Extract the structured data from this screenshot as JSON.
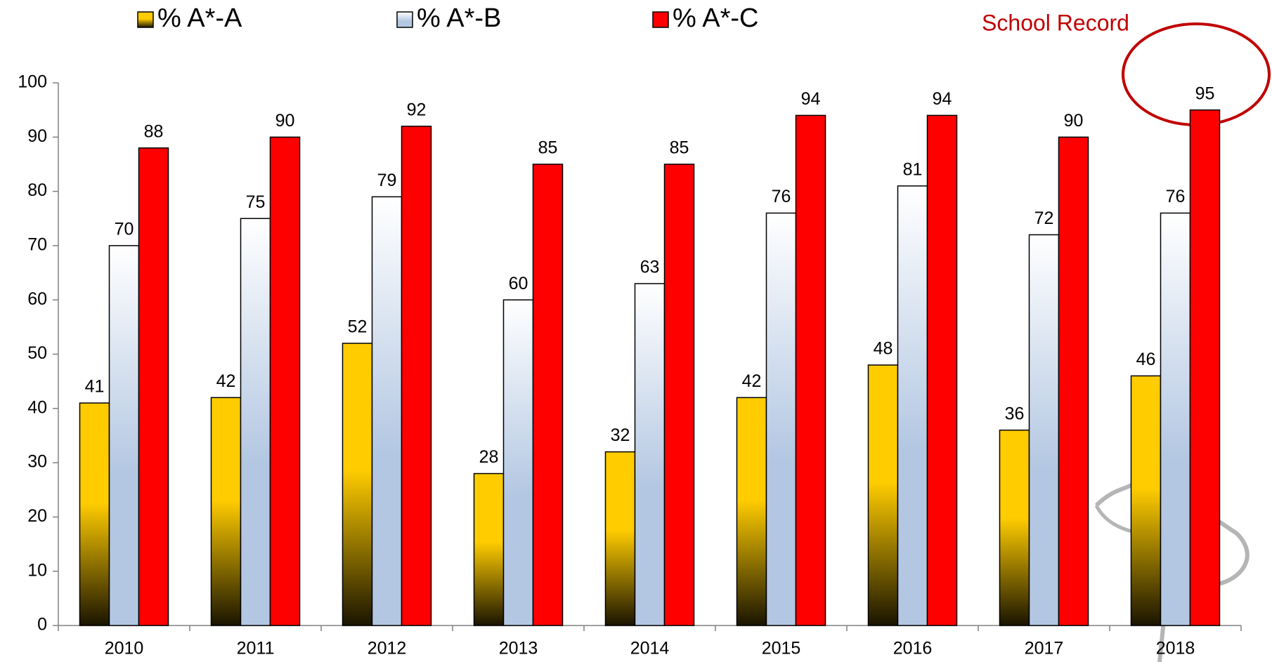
{
  "chart_data": {
    "type": "bar",
    "categories": [
      "2010",
      "2011",
      "2012",
      "2013",
      "2014",
      "2015",
      "2016",
      "2017",
      "2018"
    ],
    "series": [
      {
        "name": "% A*-A",
        "color": "#ffcc00",
        "values": [
          41,
          42,
          52,
          28,
          32,
          42,
          48,
          36,
          46
        ]
      },
      {
        "name": "% A*-B",
        "color": "#b3c7e2",
        "values": [
          70,
          75,
          79,
          60,
          63,
          76,
          81,
          72,
          76
        ]
      },
      {
        "name": "% A*-C",
        "color": "#ff0000",
        "values": [
          88,
          90,
          92,
          85,
          85,
          94,
          94,
          90,
          95
        ]
      }
    ],
    "ylim": [
      0,
      100
    ],
    "yticks": [
      0,
      10,
      20,
      30,
      40,
      50,
      60,
      70,
      80,
      90,
      100
    ],
    "grid": false,
    "legend": "top",
    "annotation": "School Record"
  }
}
